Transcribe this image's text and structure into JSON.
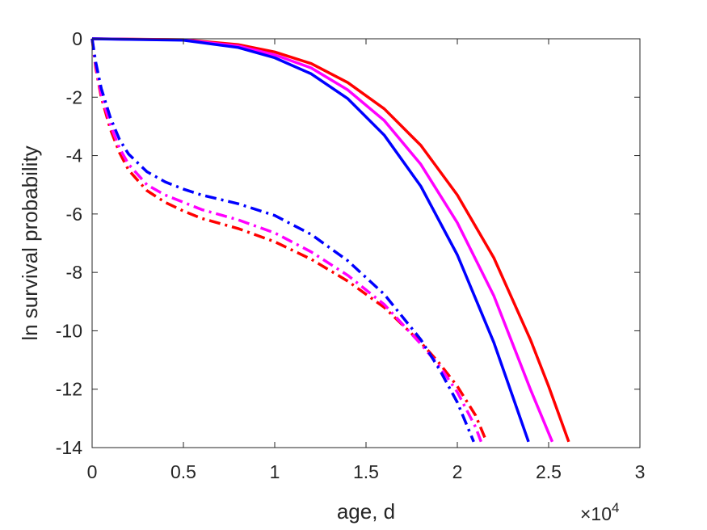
{
  "chart_data": {
    "type": "line",
    "title": "",
    "xlabel": "age, d",
    "ylabel": "ln survival probability",
    "x_exponent": {
      "base": "×10",
      "power": "4"
    },
    "xlim": [
      0,
      3
    ],
    "ylim": [
      -14,
      0
    ],
    "x_ticks": [
      0,
      0.5,
      1,
      1.5,
      2,
      2.5,
      3
    ],
    "x_tick_labels": [
      "0",
      "0.5",
      "1",
      "1.5",
      "2",
      "2.5",
      "3"
    ],
    "y_ticks": [
      0,
      -2,
      -4,
      -6,
      -8,
      -10,
      -12,
      -14
    ],
    "y_tick_labels": [
      "0",
      "-2",
      "-4",
      "-6",
      "-8",
      "-10",
      "-12",
      "-14"
    ],
    "grid": false,
    "legend": "none",
    "series": [
      {
        "color": "#ff0000",
        "style": "solid",
        "x": [
          0,
          0.5,
          0.8,
          1.0,
          1.2,
          1.4,
          1.6,
          1.8,
          2.0,
          2.2,
          2.4,
          2.5,
          2.61
        ],
        "y": [
          0,
          -0.03,
          -0.2,
          -0.45,
          -0.85,
          -1.5,
          -2.4,
          -3.65,
          -5.35,
          -7.5,
          -10.3,
          -11.9,
          -13.8
        ]
      },
      {
        "color": "#ff00ff",
        "style": "solid",
        "x": [
          0,
          0.5,
          0.8,
          1.0,
          1.2,
          1.4,
          1.6,
          1.8,
          2.0,
          2.2,
          2.4,
          2.52
        ],
        "y": [
          0,
          -0.04,
          -0.25,
          -0.55,
          -1.0,
          -1.75,
          -2.8,
          -4.3,
          -6.3,
          -8.8,
          -12.0,
          -13.8
        ]
      },
      {
        "color": "#0000ff",
        "style": "solid",
        "x": [
          0,
          0.5,
          0.8,
          1.0,
          1.2,
          1.4,
          1.6,
          1.8,
          2.0,
          2.2,
          2.39
        ],
        "y": [
          0,
          -0.05,
          -0.3,
          -0.65,
          -1.2,
          -2.05,
          -3.3,
          -5.05,
          -7.4,
          -10.4,
          -13.8
        ]
      },
      {
        "color": "#ff0000",
        "style": "dashdot",
        "x": [
          0,
          0.02,
          0.05,
          0.1,
          0.15,
          0.2,
          0.3,
          0.4,
          0.5,
          0.6,
          0.8,
          1.0,
          1.2,
          1.4,
          1.6,
          1.8,
          1.9,
          2.0,
          2.1,
          2.16
        ],
        "y": [
          0,
          -1.0,
          -2.0,
          -3.1,
          -3.9,
          -4.5,
          -5.2,
          -5.6,
          -5.9,
          -6.15,
          -6.5,
          -6.95,
          -7.55,
          -8.3,
          -9.2,
          -10.4,
          -11.1,
          -11.9,
          -12.9,
          -13.8
        ]
      },
      {
        "color": "#ff00ff",
        "style": "dashdot",
        "x": [
          0,
          0.02,
          0.05,
          0.1,
          0.15,
          0.2,
          0.3,
          0.4,
          0.5,
          0.6,
          0.8,
          1.0,
          1.2,
          1.4,
          1.6,
          1.8,
          1.9,
          2.0,
          2.1,
          2.13
        ],
        "y": [
          0,
          -0.9,
          -1.9,
          -2.95,
          -3.75,
          -4.3,
          -5.0,
          -5.35,
          -5.6,
          -5.85,
          -6.2,
          -6.65,
          -7.3,
          -8.1,
          -9.1,
          -10.45,
          -11.2,
          -12.1,
          -13.3,
          -13.8
        ]
      },
      {
        "color": "#0000ff",
        "style": "dashdot",
        "x": [
          0,
          0.02,
          0.05,
          0.1,
          0.15,
          0.2,
          0.3,
          0.4,
          0.5,
          0.6,
          0.8,
          1.0,
          1.2,
          1.4,
          1.6,
          1.8,
          1.9,
          2.0,
          2.09
        ],
        "y": [
          0,
          -0.8,
          -1.7,
          -2.7,
          -3.45,
          -3.95,
          -4.55,
          -4.9,
          -5.15,
          -5.35,
          -5.65,
          -6.05,
          -6.7,
          -7.6,
          -8.75,
          -10.3,
          -11.3,
          -12.45,
          -13.8
        ]
      }
    ]
  }
}
